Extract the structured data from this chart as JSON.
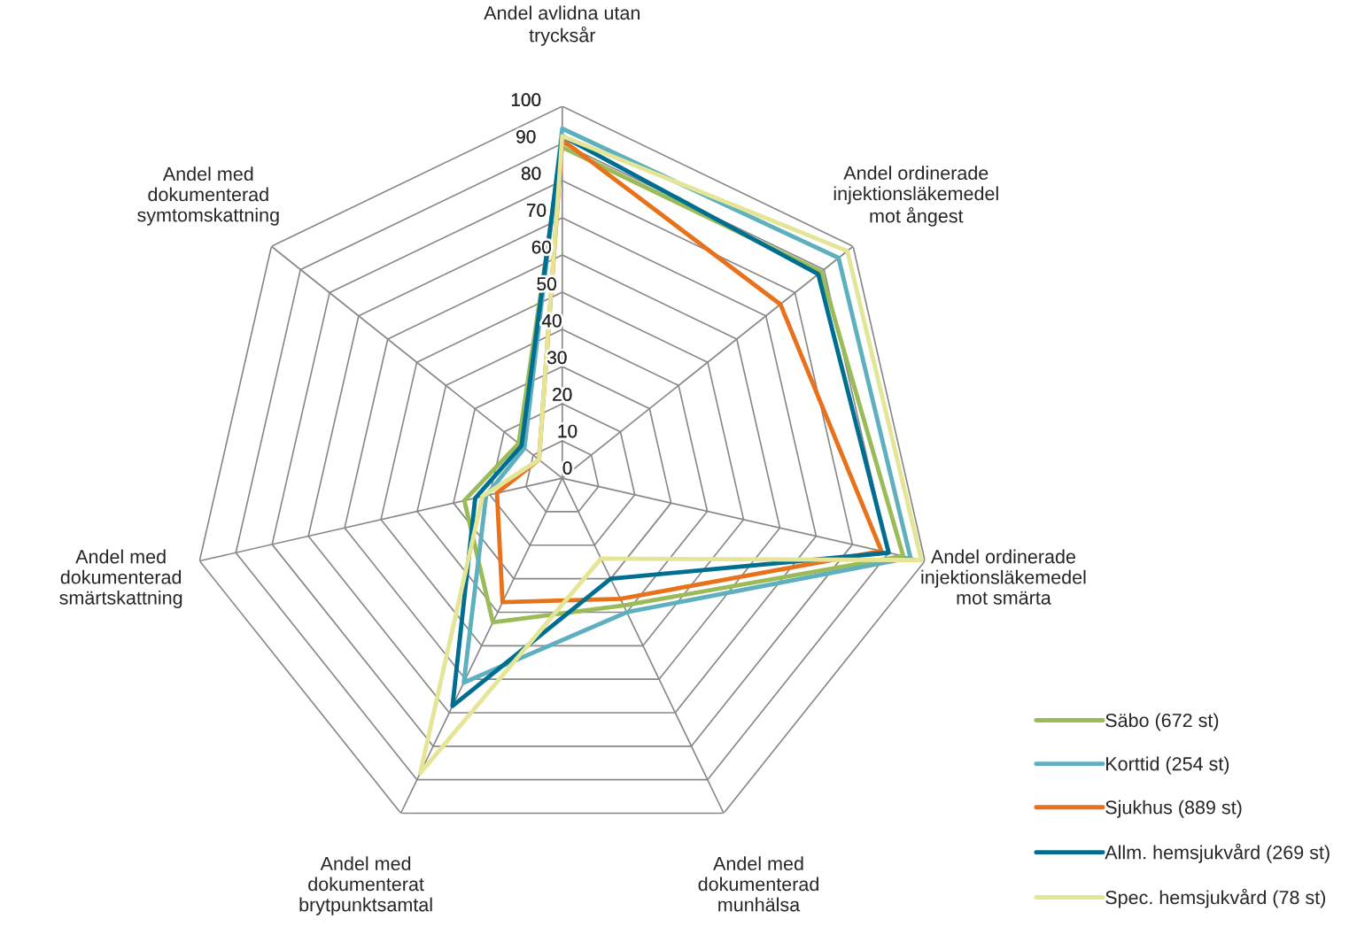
{
  "chart_data": {
    "type": "radar",
    "categories": [
      "Andel avlidna utan\ntrycksår",
      "Andel ordinerade\ninjektionsläkemedel\nmot ångest",
      "Andel ordinerade\ninjektionsläkemedel\nmot smärta",
      "Andel med\ndokumenterad\nmunhälsa",
      "Andel med\ndokumenterat\nbrytpunktsamtal",
      "Andel med\ndokumenterad\nsmärtskattning",
      "Andel med\ndokumenterad\nsymtomskattning"
    ],
    "series": [
      {
        "name": "Säbo (672 st)",
        "color": "#9bbb59",
        "values": [
          89,
          89,
          94,
          38,
          43,
          27,
          15
        ]
      },
      {
        "name": "Korttid (254 st)",
        "color": "#5fb0bf",
        "values": [
          94,
          95,
          96,
          40,
          61,
          21,
          13
        ]
      },
      {
        "name": "Sjukhus (889 st)",
        "color": "#e8721c",
        "values": [
          91,
          75,
          88,
          36,
          37,
          18,
          8
        ]
      },
      {
        "name": "Allm. hemsjukvård (269 st)",
        "color": "#006e91",
        "values": [
          92,
          88,
          90,
          30,
          68,
          24,
          14
        ]
      },
      {
        "name": "Spec. hemsjukvård (78 st)",
        "color": "#e5e597",
        "values": [
          92,
          98,
          99,
          24,
          88,
          22,
          8
        ]
      }
    ],
    "ylim": [
      0,
      100
    ],
    "yticks": [
      0,
      10,
      20,
      30,
      40,
      50,
      60,
      70,
      80,
      90,
      100
    ],
    "grid": true,
    "legend": "bottom right",
    "marker": "none",
    "line_style": "solid"
  }
}
